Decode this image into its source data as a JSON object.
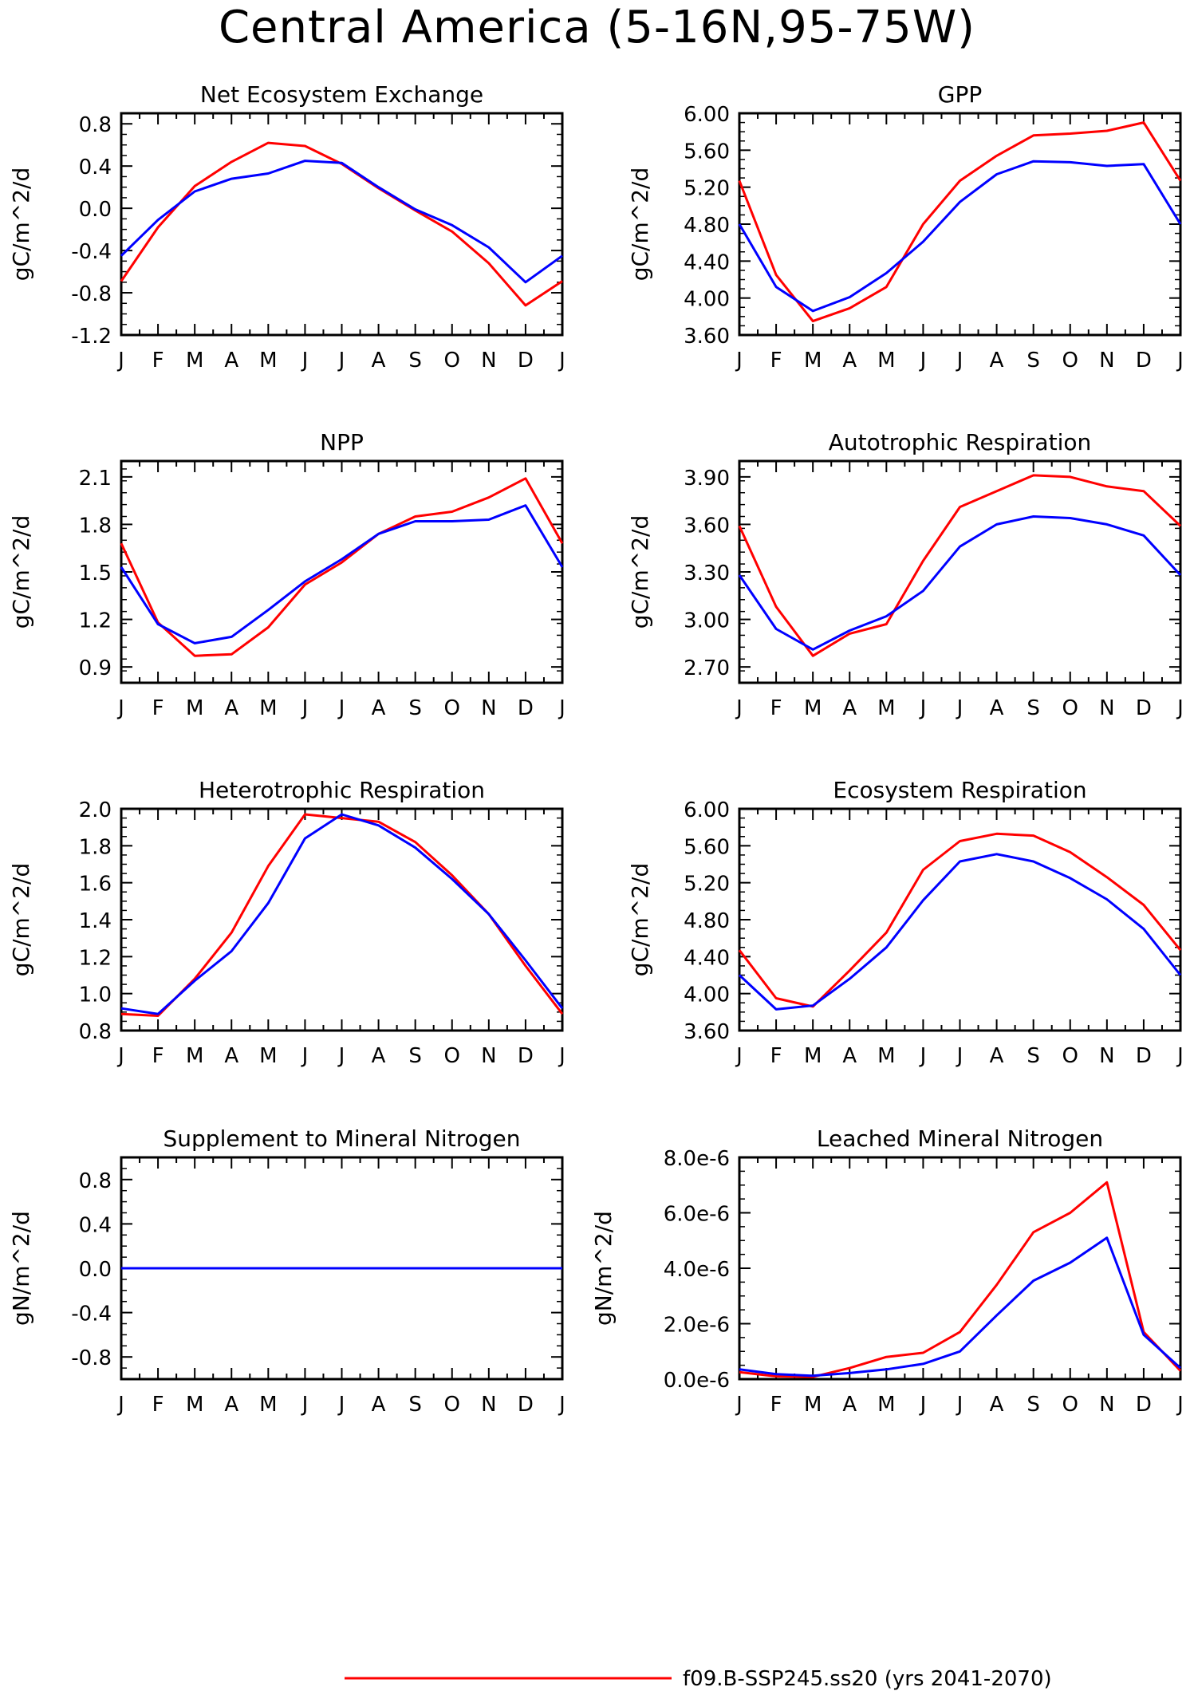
{
  "title": "Central America (5-16N,95-75W)",
  "colors": {
    "series_red": "#ff0000",
    "series_blue": "#0000ff",
    "axis": "#000000"
  },
  "legend": {
    "position": "bottom-right",
    "entries": [
      {
        "label": "f09.B-SSP245.ss20 (yrs 2041-2070)",
        "color": "#ff0000"
      }
    ]
  },
  "chart_data": [
    {
      "type": "line",
      "title": "Net Ecosystem Exchange",
      "ylabel": "gC/m^2/d",
      "x": [
        "J",
        "F",
        "M",
        "A",
        "M",
        "J",
        "J",
        "A",
        "S",
        "O",
        "N",
        "D",
        "J"
      ],
      "ylim": [
        -1.2,
        0.9
      ],
      "yticks": [
        -1.2,
        -0.8,
        -0.4,
        0.0,
        0.4,
        0.8
      ],
      "ytick_labels": [
        "-1.2",
        "-0.8",
        "-0.4",
        "0.0",
        "0.4",
        "0.8"
      ],
      "series": [
        {
          "color": "#ff0000",
          "values": [
            -0.69,
            -0.18,
            0.21,
            0.44,
            0.62,
            0.59,
            0.42,
            0.19,
            -0.02,
            -0.22,
            -0.52,
            -0.92,
            -0.69
          ]
        },
        {
          "color": "#0000ff",
          "values": [
            -0.45,
            -0.11,
            0.16,
            0.28,
            0.33,
            0.45,
            0.43,
            0.2,
            -0.01,
            -0.16,
            -0.37,
            -0.7,
            -0.45
          ]
        }
      ]
    },
    {
      "type": "line",
      "title": "GPP",
      "ylabel": "gC/m^2/d",
      "x": [
        "J",
        "F",
        "M",
        "A",
        "M",
        "J",
        "J",
        "A",
        "S",
        "O",
        "N",
        "D",
        "J"
      ],
      "ylim": [
        3.6,
        6.0
      ],
      "yticks": [
        3.6,
        4.0,
        4.4,
        4.8,
        5.2,
        5.6,
        6.0
      ],
      "ytick_labels": [
        "3.60",
        "4.00",
        "4.40",
        "4.80",
        "5.20",
        "5.60",
        "6.00"
      ],
      "series": [
        {
          "color": "#ff0000",
          "values": [
            5.27,
            4.25,
            3.75,
            3.89,
            4.12,
            4.8,
            5.27,
            5.54,
            5.76,
            5.78,
            5.81,
            5.9,
            5.27
          ]
        },
        {
          "color": "#0000ff",
          "values": [
            4.8,
            4.12,
            3.86,
            4.01,
            4.27,
            4.61,
            5.04,
            5.34,
            5.48,
            5.47,
            5.43,
            5.45,
            4.8
          ]
        }
      ]
    },
    {
      "type": "line",
      "title": "NPP",
      "ylabel": "gC/m^2/d",
      "x": [
        "J",
        "F",
        "M",
        "A",
        "M",
        "J",
        "J",
        "A",
        "S",
        "O",
        "N",
        "D",
        "J"
      ],
      "ylim": [
        0.8,
        2.2
      ],
      "yticks": [
        0.9,
        1.2,
        1.5,
        1.8,
        2.1
      ],
      "ytick_labels": [
        "0.9",
        "1.2",
        "1.5",
        "1.8",
        "2.1"
      ],
      "series": [
        {
          "color": "#ff0000",
          "values": [
            1.68,
            1.18,
            0.97,
            0.98,
            1.15,
            1.42,
            1.56,
            1.74,
            1.85,
            1.88,
            1.97,
            2.09,
            1.68
          ]
        },
        {
          "color": "#0000ff",
          "values": [
            1.53,
            1.17,
            1.05,
            1.09,
            1.26,
            1.44,
            1.58,
            1.74,
            1.82,
            1.82,
            1.83,
            1.92,
            1.53
          ]
        }
      ]
    },
    {
      "type": "line",
      "title": "Autotrophic Respiration",
      "ylabel": "gC/m^2/d",
      "x": [
        "J",
        "F",
        "M",
        "A",
        "M",
        "J",
        "J",
        "A",
        "S",
        "O",
        "N",
        "D",
        "J"
      ],
      "ylim": [
        2.6,
        4.0
      ],
      "yticks": [
        2.7,
        3.0,
        3.3,
        3.6,
        3.9
      ],
      "ytick_labels": [
        "2.70",
        "3.00",
        "3.30",
        "3.60",
        "3.90"
      ],
      "series": [
        {
          "color": "#ff0000",
          "values": [
            3.59,
            3.08,
            2.77,
            2.91,
            2.97,
            3.37,
            3.71,
            3.81,
            3.91,
            3.9,
            3.84,
            3.81,
            3.59
          ]
        },
        {
          "color": "#0000ff",
          "values": [
            3.28,
            2.94,
            2.81,
            2.93,
            3.02,
            3.18,
            3.46,
            3.6,
            3.65,
            3.64,
            3.6,
            3.53,
            3.28
          ]
        }
      ]
    },
    {
      "type": "line",
      "title": "Heterotrophic Respiration",
      "ylabel": "gC/m^2/d",
      "x": [
        "J",
        "F",
        "M",
        "A",
        "M",
        "J",
        "J",
        "A",
        "S",
        "O",
        "N",
        "D",
        "J"
      ],
      "ylim": [
        0.8,
        2.0
      ],
      "yticks": [
        0.8,
        1.0,
        1.2,
        1.4,
        1.6,
        1.8,
        2.0
      ],
      "ytick_labels": [
        "0.8",
        "1.0",
        "1.2",
        "1.4",
        "1.6",
        "1.8",
        "2.0"
      ],
      "series": [
        {
          "color": "#ff0000",
          "values": [
            0.89,
            0.88,
            1.08,
            1.33,
            1.69,
            1.97,
            1.95,
            1.93,
            1.82,
            1.64,
            1.43,
            1.15,
            0.89
          ]
        },
        {
          "color": "#0000ff",
          "values": [
            0.92,
            0.89,
            1.07,
            1.23,
            1.49,
            1.84,
            1.97,
            1.91,
            1.79,
            1.62,
            1.43,
            1.18,
            0.92
          ]
        }
      ]
    },
    {
      "type": "line",
      "title": "Ecosystem Respiration",
      "ylabel": "gC/m^2/d",
      "x": [
        "J",
        "F",
        "M",
        "A",
        "M",
        "J",
        "J",
        "A",
        "S",
        "O",
        "N",
        "D",
        "J"
      ],
      "ylim": [
        3.6,
        6.0
      ],
      "yticks": [
        3.6,
        4.0,
        4.4,
        4.8,
        5.2,
        5.6,
        6.0
      ],
      "ytick_labels": [
        "3.60",
        "4.00",
        "4.40",
        "4.80",
        "5.20",
        "5.60",
        "6.00"
      ],
      "series": [
        {
          "color": "#ff0000",
          "values": [
            4.47,
            3.95,
            3.86,
            4.25,
            4.66,
            5.34,
            5.65,
            5.73,
            5.71,
            5.53,
            5.26,
            4.96,
            4.47
          ]
        },
        {
          "color": "#0000ff",
          "values": [
            4.2,
            3.83,
            3.87,
            4.16,
            4.5,
            5.01,
            5.43,
            5.51,
            5.43,
            5.25,
            5.02,
            4.7,
            4.2
          ]
        }
      ]
    },
    {
      "type": "line",
      "title": "Supplement to Mineral Nitrogen",
      "ylabel": "gN/m^2/d",
      "x": [
        "J",
        "F",
        "M",
        "A",
        "M",
        "J",
        "J",
        "A",
        "S",
        "O",
        "N",
        "D",
        "J"
      ],
      "ylim": [
        -1.0,
        1.0
      ],
      "yticks": [
        -0.8,
        -0.4,
        0.0,
        0.4,
        0.8
      ],
      "ytick_labels": [
        "-0.8",
        "-0.4",
        "0.0",
        "0.4",
        "0.8"
      ],
      "series": [
        {
          "color": "#ff0000",
          "values": [
            0,
            0,
            0,
            0,
            0,
            0,
            0,
            0,
            0,
            0,
            0,
            0,
            0
          ]
        },
        {
          "color": "#0000ff",
          "values": [
            0,
            0,
            0,
            0,
            0,
            0,
            0,
            0,
            0,
            0,
            0,
            0,
            0
          ]
        }
      ]
    },
    {
      "type": "line",
      "title": "Leached Mineral Nitrogen",
      "ylabel": "gN/m^2/d",
      "x": [
        "J",
        "F",
        "M",
        "A",
        "M",
        "J",
        "J",
        "A",
        "S",
        "O",
        "N",
        "D",
        "J"
      ],
      "ylim": [
        0,
        8e-06
      ],
      "yticks": [
        0,
        2e-06,
        4e-06,
        6e-06,
        8e-06
      ],
      "ytick_labels": [
        "0.0e-6",
        "2.0e-6",
        "4.0e-6",
        "6.0e-6",
        "8.0e-6"
      ],
      "series": [
        {
          "color": "#ff0000",
          "values": [
            2.5e-07,
            1e-07,
            8e-08,
            4e-07,
            8e-07,
            9.5e-07,
            1.7e-06,
            3.4e-06,
            5.3e-06,
            6e-06,
            7.1e-06,
            1.7e-06,
            3e-07
          ]
        },
        {
          "color": "#0000ff",
          "values": [
            3.5e-07,
            1.8e-07,
            1.2e-07,
            2.2e-07,
            3.5e-07,
            5.5e-07,
            1e-06,
            2.3e-06,
            3.55e-06,
            4.2e-06,
            5.1e-06,
            1.6e-06,
            4e-07
          ]
        }
      ]
    }
  ]
}
